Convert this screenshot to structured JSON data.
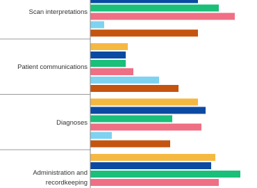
{
  "chart_data": {
    "type": "bar",
    "orientation": "horizontal",
    "categories": [
      "Scan interpretations",
      "Patient communications",
      "Diagnoses",
      "Administration and recordkeeping"
    ],
    "series": [
      {
        "color": "#f5b942",
        "values": [
          null,
          54,
          155,
          180
        ]
      },
      {
        "color": "#0b4aa2",
        "values": [
          155,
          51,
          166,
          174
        ]
      },
      {
        "color": "#1abf7a",
        "values": [
          185,
          51,
          118,
          216
        ]
      },
      {
        "color": "#ef6f84",
        "values": [
          208,
          62,
          160,
          185
        ]
      },
      {
        "color": "#7dd3f0",
        "values": [
          20,
          99,
          31,
          null
        ]
      },
      {
        "color": "#c4540f",
        "values": [
          155,
          127,
          115,
          null
        ]
      }
    ],
    "xlim": [
      0,
      240
    ]
  }
}
